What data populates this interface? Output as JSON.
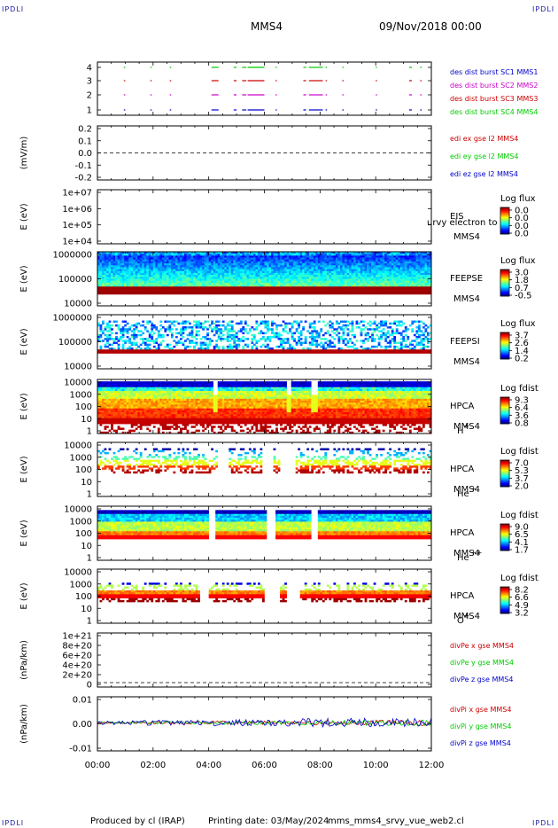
{
  "header": {
    "corner_label": "IPDLI",
    "spacecraft": "MMS4",
    "date_time": "09/Nov/2018 00:00"
  },
  "footer": {
    "produced_by": "Produced by cl (IRAP)",
    "printing_date": "Printing date: 03/May/2024",
    "script_name": "mms_mms4_srvy_vue_web2.cl"
  },
  "colors": {
    "red": "#cc0000",
    "magenta": "#cc00cc",
    "green": "#00cc00",
    "blue": "#0000cc"
  },
  "chart_data": {
    "type": "heatmap",
    "x_ticks": [
      "00:00",
      "02:00",
      "04:00",
      "06:00",
      "08:00",
      "10:00",
      "12:00"
    ],
    "x_range_hours": [
      0,
      12
    ],
    "panels": [
      {
        "id": "burst",
        "kind": "events",
        "ylabel": "",
        "y_ticks": [
          "4",
          "3",
          "2",
          "1"
        ],
        "legend": [
          {
            "label": "des dist burst SC1 MMS1",
            "color": "#0000cc"
          },
          {
            "label": "des dist burst SC2 MMS2",
            "color": "#cc00cc"
          },
          {
            "label": "des dist burst SC3 MMS3",
            "color": "#cc0000"
          },
          {
            "label": "des dist burst SC4 MMS4",
            "color": "#00cc00"
          }
        ],
        "intervals_hours": [
          [
            0.95,
            1.0
          ],
          [
            1.9,
            1.95
          ],
          [
            2.6,
            2.65
          ],
          [
            4.1,
            4.35
          ],
          [
            4.9,
            5.0
          ],
          [
            5.2,
            5.35
          ],
          [
            5.4,
            6.0
          ],
          [
            6.4,
            6.45
          ],
          [
            7.4,
            7.5
          ],
          [
            7.6,
            8.1
          ],
          [
            8.2,
            8.25
          ],
          [
            8.8,
            8.85
          ],
          [
            10.0,
            10.05
          ],
          [
            11.2,
            11.3
          ],
          [
            11.6,
            11.65
          ]
        ]
      },
      {
        "id": "edi",
        "kind": "line",
        "ylabel": "(mV/m)",
        "y_ticks": [
          "0.2",
          "0.1",
          "0.0",
          "-0.1",
          "-0.2"
        ],
        "legend": [
          {
            "label": "edi ex gse l2 MMS4",
            "color": "#cc0000"
          },
          {
            "label": "edi ey gse l2 MMS4",
            "color": "#00cc00"
          },
          {
            "label": "edi ez gse l2 MMS4",
            "color": "#0000cc"
          }
        ]
      },
      {
        "id": "eis",
        "kind": "empty_spectrogram",
        "ylabel": "E (eV)",
        "y_ticks": [
          "1e+07",
          "1e+06",
          "1e+05",
          "1e+04"
        ],
        "instrument": "EIS",
        "overlay_text": "urvy electron to",
        "spacecraft": "MMS4",
        "species": "",
        "colorbar_title": "Log flux",
        "colorbar_ticks": [
          "0.0",
          "0.0",
          "0.0",
          "0.0"
        ]
      },
      {
        "id": "feepse",
        "kind": "spectrogram",
        "ylabel": "E (eV)",
        "y_ticks": [
          "1000000",
          "100000",
          "10000"
        ],
        "instrument": "FEEPSE",
        "spacecraft": "MMS4",
        "species": "",
        "colorbar_title": "Log flux",
        "colorbar_ticks": [
          "3.0",
          "1.8",
          "0.7",
          "-0.5"
        ]
      },
      {
        "id": "feepsi",
        "kind": "spectrogram",
        "ylabel": "E (eV)",
        "y_ticks": [
          "1000000",
          "100000",
          "10000"
        ],
        "instrument": "FEEPSI",
        "spacecraft": "MMS4",
        "species": "",
        "colorbar_title": "Log flux",
        "colorbar_ticks": [
          "3.7",
          "2.6",
          "1.4",
          "0.2"
        ]
      },
      {
        "id": "hpca_h",
        "kind": "spectrogram",
        "ylabel": "E (eV)",
        "y_ticks": [
          "10000",
          "1000",
          "100",
          "10",
          "1"
        ],
        "instrument": "HPCA",
        "spacecraft": "MMS4",
        "species": "H",
        "species_sup": "+",
        "colorbar_title": "Log fdist",
        "colorbar_ticks": [
          "9.3",
          "6.4",
          "3.6",
          "0.8"
        ]
      },
      {
        "id": "hpca_he",
        "kind": "spectrogram",
        "ylabel": "E (eV)",
        "y_ticks": [
          "10000",
          "1000",
          "100",
          "10",
          "1"
        ],
        "instrument": "HPCA",
        "spacecraft": "MMS4",
        "species": "He",
        "species_sup": "+",
        "colorbar_title": "Log fdist",
        "colorbar_ticks": [
          "7.0",
          "5.3",
          "3.7",
          "2.0"
        ]
      },
      {
        "id": "hpca_hepp",
        "kind": "spectrogram",
        "ylabel": "E (eV)",
        "y_ticks": [
          "10000",
          "1000",
          "100",
          "10",
          "1"
        ],
        "instrument": "HPCA",
        "spacecraft": "MMS4",
        "species": "He",
        "species_sup": "++",
        "colorbar_title": "Log fdist",
        "colorbar_ticks": [
          "9.0",
          "6.5",
          "4.1",
          "1.7"
        ]
      },
      {
        "id": "hpca_o",
        "kind": "spectrogram",
        "ylabel": "E (eV)",
        "y_ticks": [
          "10000",
          "1000",
          "100",
          "10",
          "1"
        ],
        "instrument": "HPCA",
        "spacecraft": "MMS4",
        "species": "O",
        "species_sup": "+",
        "colorbar_title": "Log fdist",
        "colorbar_ticks": [
          "8.2",
          "6.6",
          "4.9",
          "3.2"
        ]
      },
      {
        "id": "divpe",
        "kind": "line",
        "ylabel": "(nPa/km)",
        "y_ticks": [
          "1e+21",
          "8e+20",
          "6e+20",
          "4e+20",
          "2e+20",
          "0"
        ],
        "legend": [
          {
            "label": "divPe x gse MMS4",
            "color": "#cc0000"
          },
          {
            "label": "divPe y gse MMS4",
            "color": "#00cc00"
          },
          {
            "label": "divPe z gse MMS4",
            "color": "#0000cc"
          }
        ]
      },
      {
        "id": "divpi",
        "kind": "line",
        "ylabel": "(nPa/km)",
        "y_ticks": [
          "0.01",
          "0.00",
          "-0.01"
        ],
        "legend": [
          {
            "label": "divPi x gse MMS4",
            "color": "#cc0000"
          },
          {
            "label": "divPi y gse MMS4",
            "color": "#00cc00"
          },
          {
            "label": "divPi z gse MMS4",
            "color": "#0000cc"
          }
        ]
      }
    ]
  }
}
